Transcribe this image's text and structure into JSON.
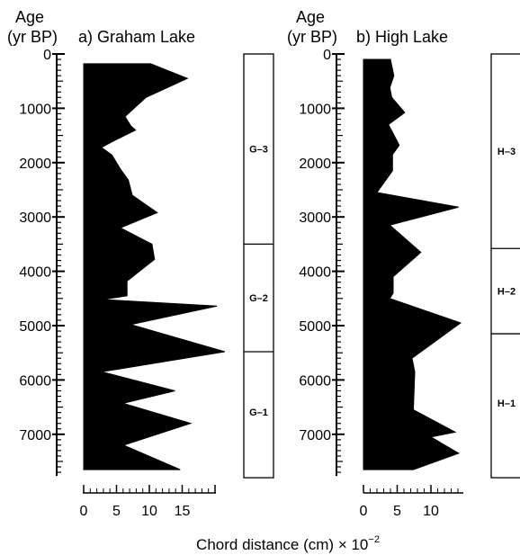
{
  "chart_data": [
    {
      "type": "area",
      "title": "a) Graham Lake",
      "ylabel_line1": "Age",
      "ylabel_line2": "(yr BP)",
      "y_axis": "Age (yr BP)",
      "x_axis": "Chord distance (cm) × 10⁻²",
      "ylim": [
        0,
        7700
      ],
      "y_inverted": true,
      "xlim": [
        0,
        20
      ],
      "yticks": [
        0,
        1000,
        2000,
        3000,
        4000,
        5000,
        6000,
        7000
      ],
      "ytick_labels": [
        "0",
        "1000",
        "2000",
        "3000",
        "4000",
        "5000",
        "6000",
        "7000"
      ],
      "xticks": [
        0,
        5,
        10,
        15
      ],
      "xtick_labels": [
        "0",
        "5",
        "10",
        "15"
      ],
      "series": [
        {
          "points": [
            {
              "age": 180,
              "chord": 0
            },
            {
              "age": 180,
              "chord": 10.2
            },
            {
              "age": 450,
              "chord": 15.8
            },
            {
              "age": 800,
              "chord": 9.5
            },
            {
              "age": 1150,
              "chord": 6.3
            },
            {
              "age": 1330,
              "chord": 7.2
            },
            {
              "age": 1400,
              "chord": 7.9
            },
            {
              "age": 1580,
              "chord": 4.9
            },
            {
              "age": 1720,
              "chord": 2.7
            },
            {
              "age": 1860,
              "chord": 4.3
            },
            {
              "age": 2120,
              "chord": 5.6
            },
            {
              "age": 2320,
              "chord": 6.8
            },
            {
              "age": 2600,
              "chord": 7.4
            },
            {
              "age": 2920,
              "chord": 11.2
            },
            {
              "age": 3200,
              "chord": 5.6
            },
            {
              "age": 3500,
              "chord": 10.4
            },
            {
              "age": 3780,
              "chord": 10.8
            },
            {
              "age": 4180,
              "chord": 6.6
            },
            {
              "age": 4450,
              "chord": 6.6
            },
            {
              "age": 4520,
              "chord": 3.0
            },
            {
              "age": 4640,
              "chord": 20.3
            },
            {
              "age": 4980,
              "chord": 7.2
            },
            {
              "age": 5480,
              "chord": 21.5
            },
            {
              "age": 5850,
              "chord": 2.8
            },
            {
              "age": 6200,
              "chord": 13.9
            },
            {
              "age": 6430,
              "chord": 6.0
            },
            {
              "age": 6800,
              "chord": 16.3
            },
            {
              "age": 7200,
              "chord": 6.1
            },
            {
              "age": 7650,
              "chord": 14.7
            },
            {
              "age": 7650,
              "chord": 0
            }
          ]
        }
      ],
      "zones": [
        {
          "label": "G–3",
          "top": 0,
          "bottom": 3500
        },
        {
          "label": "G–2",
          "top": 3500,
          "bottom": 5480
        },
        {
          "label": "G–1",
          "top": 5480,
          "bottom": 7700
        }
      ]
    },
    {
      "type": "area",
      "title": "b) High Lake",
      "ylabel_line1": "Age",
      "ylabel_line2": "(yr BP)",
      "y_axis": "Age (yr BP)",
      "x_axis": "Chord distance (cm) × 10⁻²",
      "ylim": [
        0,
        7700
      ],
      "y_inverted": true,
      "xlim": [
        0,
        15
      ],
      "yticks": [
        0,
        1000,
        2000,
        3000,
        4000,
        5000,
        6000,
        7000
      ],
      "ytick_labels": [
        "0",
        "1000",
        "2000",
        "3000",
        "4000",
        "5000",
        "6000",
        "7000"
      ],
      "xticks": [
        0,
        5,
        10
      ],
      "xtick_labels": [
        "0",
        "5",
        "10"
      ],
      "series": [
        {
          "points": [
            {
              "age": 100,
              "chord": 0
            },
            {
              "age": 100,
              "chord": 4.0
            },
            {
              "age": 400,
              "chord": 4.5
            },
            {
              "age": 620,
              "chord": 3.9
            },
            {
              "age": 800,
              "chord": 4.2
            },
            {
              "age": 1080,
              "chord": 6.1
            },
            {
              "age": 1300,
              "chord": 3.7
            },
            {
              "age": 1680,
              "chord": 5.3
            },
            {
              "age": 1850,
              "chord": 4.3
            },
            {
              "age": 2150,
              "chord": 4.3
            },
            {
              "age": 2550,
              "chord": 2.0
            },
            {
              "age": 2820,
              "chord": 14.1
            },
            {
              "age": 3150,
              "chord": 3.9
            },
            {
              "age": 3650,
              "chord": 8.5
            },
            {
              "age": 4100,
              "chord": 4.4
            },
            {
              "age": 4400,
              "chord": 4.4
            },
            {
              "age": 4500,
              "chord": 3.9
            },
            {
              "age": 4950,
              "chord": 14.4
            },
            {
              "age": 5600,
              "chord": 7.2
            },
            {
              "age": 5850,
              "chord": 7.6
            },
            {
              "age": 6550,
              "chord": 7.4
            },
            {
              "age": 6960,
              "chord": 13.6
            },
            {
              "age": 7050,
              "chord": 10.0
            },
            {
              "age": 7350,
              "chord": 14.1
            },
            {
              "age": 7650,
              "chord": 7.4
            },
            {
              "age": 7650,
              "chord": 0
            }
          ]
        }
      ],
      "zones": [
        {
          "label": "H–3",
          "top": 0,
          "bottom": 3580
        },
        {
          "label": "H–2",
          "top": 3580,
          "bottom": 5150
        },
        {
          "label": "H–1",
          "top": 5150,
          "bottom": 7700
        }
      ]
    }
  ],
  "xlabel": "Chord distance (cm) × 10",
  "xlabel_exp": "−2"
}
